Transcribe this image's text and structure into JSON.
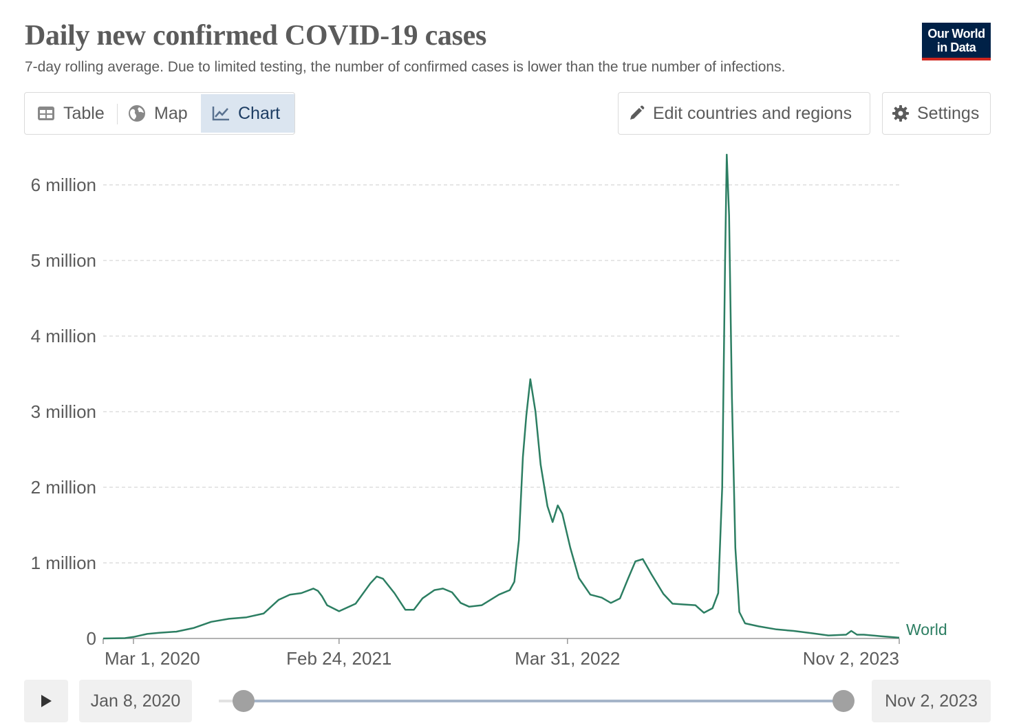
{
  "header": {
    "title": "Daily new confirmed COVID-19 cases",
    "subtitle": "7-day rolling average. Due to limited testing, the number of confirmed cases is lower than the true number of infections.",
    "logo_line1": "Our World",
    "logo_line2": "in Data"
  },
  "tabs": [
    {
      "label": "Table",
      "icon": "table-icon"
    },
    {
      "label": "Map",
      "icon": "globe-icon"
    },
    {
      "label": "Chart",
      "icon": "line-chart-icon",
      "active": true
    }
  ],
  "toolbar": {
    "edit_label": "Edit countries and regions",
    "settings_label": "Settings"
  },
  "timeline": {
    "start_date": "Jan 8, 2020",
    "end_date": "Nov 2, 2023",
    "range_start_fraction": 0.0,
    "range_end_fraction": 1.0
  },
  "colors": {
    "series": "#2c7e62",
    "grid": "#dddddd",
    "active_tab_bg": "#dbe5f0",
    "logo_bg": "#002147",
    "logo_accent": "#ce261e"
  },
  "chart_data": {
    "type": "line",
    "xlabel": "",
    "ylabel": "",
    "xlim": [
      "2020-01-08",
      "2023-11-02"
    ],
    "ylim": [
      0,
      6000000
    ],
    "grid": true,
    "x_ticks": [
      {
        "date": "2020-01-08",
        "label": ""
      },
      {
        "date": "2020-03-01",
        "label": "Mar 1, 2020"
      },
      {
        "date": "2021-02-24",
        "label": "Feb 24, 2021"
      },
      {
        "date": "2022-03-31",
        "label": "Mar 31, 2022"
      },
      {
        "date": "2023-11-02",
        "label": "Nov 2, 2023"
      }
    ],
    "y_ticks": [
      {
        "value": 0,
        "label": "0"
      },
      {
        "value": 1000000,
        "label": "1 million"
      },
      {
        "value": 2000000,
        "label": "2 million"
      },
      {
        "value": 3000000,
        "label": "3 million"
      },
      {
        "value": 4000000,
        "label": "4 million"
      },
      {
        "value": 5000000,
        "label": "5 million"
      },
      {
        "value": 6000000,
        "label": "6 million"
      }
    ],
    "series": [
      {
        "name": "World",
        "points": [
          [
            "2020-01-08",
            0
          ],
          [
            "2020-02-15",
            5000
          ],
          [
            "2020-03-01",
            20000
          ],
          [
            "2020-03-25",
            60000
          ],
          [
            "2020-04-15",
            75000
          ],
          [
            "2020-05-15",
            90000
          ],
          [
            "2020-06-15",
            140000
          ],
          [
            "2020-07-15",
            220000
          ],
          [
            "2020-08-15",
            260000
          ],
          [
            "2020-09-15",
            280000
          ],
          [
            "2020-10-15",
            330000
          ],
          [
            "2020-11-10",
            510000
          ],
          [
            "2020-11-30",
            580000
          ],
          [
            "2020-12-20",
            600000
          ],
          [
            "2021-01-10",
            660000
          ],
          [
            "2021-01-18",
            630000
          ],
          [
            "2021-01-25",
            560000
          ],
          [
            "2021-02-03",
            440000
          ],
          [
            "2021-02-24",
            360000
          ],
          [
            "2021-03-25",
            460000
          ],
          [
            "2021-04-20",
            730000
          ],
          [
            "2021-05-01",
            820000
          ],
          [
            "2021-05-12",
            790000
          ],
          [
            "2021-06-01",
            600000
          ],
          [
            "2021-06-20",
            380000
          ],
          [
            "2021-07-05",
            380000
          ],
          [
            "2021-07-20",
            530000
          ],
          [
            "2021-08-10",
            640000
          ],
          [
            "2021-08-25",
            660000
          ],
          [
            "2021-09-10",
            610000
          ],
          [
            "2021-09-25",
            470000
          ],
          [
            "2021-10-10",
            420000
          ],
          [
            "2021-11-01",
            440000
          ],
          [
            "2021-12-01",
            580000
          ],
          [
            "2021-12-20",
            640000
          ],
          [
            "2021-12-28",
            750000
          ],
          [
            "2022-01-05",
            1300000
          ],
          [
            "2022-01-12",
            2400000
          ],
          [
            "2022-01-18",
            2950000
          ],
          [
            "2022-01-25",
            3430000
          ],
          [
            "2022-02-03",
            3000000
          ],
          [
            "2022-02-12",
            2300000
          ],
          [
            "2022-02-24",
            1750000
          ],
          [
            "2022-03-05",
            1540000
          ],
          [
            "2022-03-14",
            1760000
          ],
          [
            "2022-03-22",
            1650000
          ],
          [
            "2022-04-05",
            1200000
          ],
          [
            "2022-04-20",
            800000
          ],
          [
            "2022-05-10",
            580000
          ],
          [
            "2022-05-30",
            540000
          ],
          [
            "2022-06-15",
            470000
          ],
          [
            "2022-07-01",
            530000
          ],
          [
            "2022-07-15",
            790000
          ],
          [
            "2022-07-28",
            1020000
          ],
          [
            "2022-08-10",
            1050000
          ],
          [
            "2022-08-25",
            850000
          ],
          [
            "2022-09-15",
            590000
          ],
          [
            "2022-10-01",
            460000
          ],
          [
            "2022-10-20",
            450000
          ],
          [
            "2022-11-10",
            440000
          ],
          [
            "2022-11-25",
            340000
          ],
          [
            "2022-12-10",
            400000
          ],
          [
            "2022-12-20",
            600000
          ],
          [
            "2022-12-27",
            2000000
          ],
          [
            "2023-01-01",
            5000000
          ],
          [
            "2023-01-04",
            6400000
          ],
          [
            "2023-01-08",
            5600000
          ],
          [
            "2023-01-13",
            3200000
          ],
          [
            "2023-01-19",
            1200000
          ],
          [
            "2023-01-26",
            350000
          ],
          [
            "2023-02-05",
            200000
          ],
          [
            "2023-03-01",
            160000
          ],
          [
            "2023-04-01",
            120000
          ],
          [
            "2023-05-01",
            100000
          ],
          [
            "2023-06-01",
            70000
          ],
          [
            "2023-07-01",
            40000
          ],
          [
            "2023-08-01",
            50000
          ],
          [
            "2023-08-10",
            100000
          ],
          [
            "2023-08-20",
            50000
          ],
          [
            "2023-09-01",
            50000
          ],
          [
            "2023-10-01",
            30000
          ],
          [
            "2023-11-02",
            10000
          ]
        ]
      }
    ]
  }
}
